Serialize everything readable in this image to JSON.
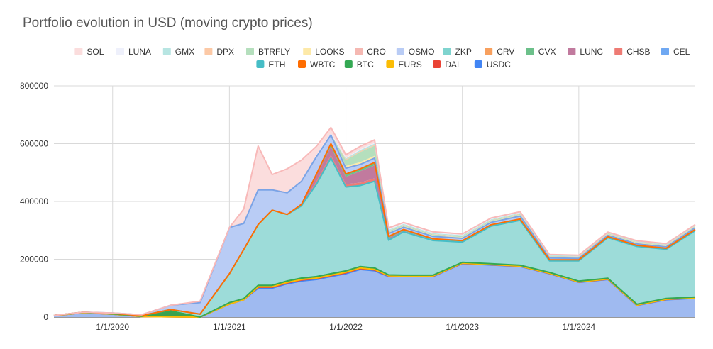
{
  "chart_data": {
    "type": "area",
    "stacked": true,
    "title": "Portfolio evolution in USD (moving crypto prices)",
    "xlabel": "",
    "ylabel": "",
    "ylim": [
      0,
      800000
    ],
    "y_ticks": [
      0,
      200000,
      400000,
      600000,
      800000
    ],
    "y_tick_labels": [
      "0",
      "200000",
      "400000",
      "600000",
      "800000"
    ],
    "x_ticks": [
      "2020-01-01",
      "2021-01-01",
      "2022-01-01",
      "2023-01-01",
      "2024-01-01"
    ],
    "x_tick_labels": [
      "1/1/2020",
      "1/1/2021",
      "1/1/2022",
      "1/1/2023",
      "1/1/2024"
    ],
    "x_range": [
      "2019-07-01",
      "2024-12-31"
    ],
    "grid": true,
    "legend_position": "top",
    "x": [
      "2019-07-01",
      "2019-10-01",
      "2020-01-01",
      "2020-04-01",
      "2020-07-01",
      "2020-10-01",
      "2021-01-01",
      "2021-02-15",
      "2021-04-01",
      "2021-05-15",
      "2021-07-01",
      "2021-08-15",
      "2021-10-01",
      "2021-11-15",
      "2022-01-01",
      "2022-02-15",
      "2022-04-01",
      "2022-05-15",
      "2022-07-01",
      "2022-10-01",
      "2023-01-01",
      "2023-04-01",
      "2023-07-01",
      "2023-10-01",
      "2024-01-01",
      "2024-04-01",
      "2024-07-01",
      "2024-10-01",
      "2024-12-31"
    ],
    "series": [
      {
        "name": "USDC",
        "color": "#9fbaf0",
        "values": [
          5000,
          15000,
          10000,
          2000,
          1000,
          0,
          45000,
          60000,
          100000,
          100000,
          115000,
          125000,
          130000,
          140000,
          150000,
          165000,
          160000,
          140000,
          140000,
          140000,
          185000,
          180000,
          175000,
          150000,
          120000,
          130000,
          40000,
          60000,
          65000
        ]
      },
      {
        "name": "DAI",
        "color": "#d64a3c",
        "values": [
          0,
          0,
          0,
          0,
          0,
          0,
          0,
          0,
          3000,
          3000,
          3000,
          3000,
          3000,
          3000,
          3000,
          3000,
          3000,
          2000,
          1000,
          1000,
          1000,
          1000,
          1000,
          1000,
          1000,
          1000,
          1000,
          1000,
          1000
        ]
      },
      {
        "name": "EURS",
        "color": "#f4b400",
        "values": [
          0,
          0,
          0,
          0,
          0,
          0,
          0,
          0,
          2000,
          2000,
          2000,
          2000,
          2000,
          2000,
          2000,
          2000,
          2000,
          1000,
          1000,
          1000,
          500,
          500,
          500,
          500,
          500,
          500,
          500,
          500,
          500
        ]
      },
      {
        "name": "BTC",
        "color": "#3aa14e",
        "values": [
          1000,
          1000,
          1000,
          1000,
          20000,
          0,
          5000,
          4000,
          5000,
          5000,
          5000,
          5000,
          5000,
          5000,
          5000,
          5000,
          5000,
          3000,
          3000,
          3000,
          3000,
          3000,
          3000,
          3000,
          3000,
          3000,
          3000,
          3000,
          3000
        ]
      },
      {
        "name": "WBTC",
        "color": "#ff7f0e",
        "values": [
          0,
          0,
          0,
          0,
          0,
          0,
          0,
          0,
          0,
          0,
          0,
          0,
          0,
          0,
          0,
          0,
          0,
          0,
          0,
          0,
          0,
          0,
          0,
          0,
          0,
          0,
          0,
          0,
          0
        ]
      },
      {
        "name": "ETH",
        "color": "#9ddcd9",
        "values": [
          0,
          1000,
          2000,
          2000,
          5000,
          10000,
          100000,
          170000,
          210000,
          260000,
          230000,
          250000,
          320000,
          400000,
          290000,
          280000,
          300000,
          120000,
          150000,
          120000,
          70000,
          130000,
          155000,
          40000,
          70000,
          140000,
          200000,
          170000,
          230000
        ]
      },
      {
        "name": "CEL",
        "color": "#6fa8f2",
        "values": [
          0,
          0,
          0,
          0,
          0,
          0,
          0,
          0,
          0,
          0,
          0,
          0,
          0,
          0,
          0,
          0,
          0,
          0,
          0,
          0,
          0,
          0,
          0,
          0,
          0,
          0,
          0,
          0,
          0
        ]
      },
      {
        "name": "CHSB",
        "color": "#ee7b74",
        "values": [
          0,
          0,
          0,
          0,
          0,
          0,
          0,
          0,
          0,
          0,
          0,
          0,
          10000,
          10000,
          10000,
          10000,
          10000,
          3000,
          2000,
          2000,
          1000,
          1000,
          1000,
          1000,
          500,
          500,
          500,
          500,
          500
        ]
      },
      {
        "name": "LUNC",
        "color": "#c17a9e",
        "values": [
          0,
          0,
          0,
          0,
          0,
          0,
          0,
          0,
          0,
          0,
          0,
          5000,
          20000,
          30000,
          25000,
          40000,
          45000,
          5000,
          2000,
          1000,
          1000,
          1000,
          1000,
          1000,
          1000,
          1000,
          1000,
          1000,
          1000
        ]
      },
      {
        "name": "CVX",
        "color": "#6cc08a",
        "values": [
          0,
          0,
          0,
          0,
          0,
          0,
          0,
          0,
          0,
          0,
          0,
          0,
          5000,
          10000,
          10000,
          8000,
          10000,
          5000,
          4000,
          3000,
          3000,
          3000,
          3000,
          2000,
          2000,
          2000,
          2000,
          2000,
          2000
        ]
      },
      {
        "name": "CRV",
        "color": "#f8a05e",
        "values": [
          0,
          0,
          0,
          0,
          0,
          0,
          0,
          0,
          0,
          0,
          0,
          0,
          0,
          0,
          0,
          0,
          0,
          0,
          0,
          0,
          0,
          0,
          0,
          0,
          0,
          0,
          0,
          0,
          0
        ]
      },
      {
        "name": "ZKP",
        "color": "#7fd4cf",
        "values": [
          0,
          0,
          0,
          0,
          0,
          0,
          0,
          0,
          0,
          0,
          0,
          0,
          0,
          0,
          0,
          0,
          0,
          0,
          0,
          0,
          0,
          0,
          0,
          0,
          0,
          0,
          0,
          0,
          0
        ]
      },
      {
        "name": "OSMO",
        "color": "#b9ccf5",
        "values": [
          0,
          0,
          1000,
          3000,
          15000,
          40000,
          160000,
          90000,
          120000,
          70000,
          75000,
          80000,
          60000,
          30000,
          20000,
          15000,
          15000,
          10000,
          8000,
          8000,
          8000,
          8000,
          10000,
          6000,
          5000,
          5000,
          5000,
          5000,
          6000
        ]
      },
      {
        "name": "CRO",
        "color": "#f5b8b2",
        "values": [
          0,
          0,
          0,
          0,
          0,
          0,
          0,
          0,
          2000,
          3000,
          3000,
          3000,
          3000,
          3000,
          3000,
          3000,
          3000,
          2000,
          2000,
          2000,
          2000,
          2000,
          2000,
          2000,
          2000,
          2000,
          2000,
          2000,
          2000
        ]
      },
      {
        "name": "LOOKS",
        "color": "#fde9a8",
        "values": [
          0,
          0,
          0,
          0,
          0,
          0,
          0,
          0,
          0,
          0,
          0,
          0,
          0,
          0,
          5000,
          5000,
          5000,
          2000,
          2000,
          2000,
          2000,
          2000,
          2000,
          2000,
          2000,
          2000,
          2000,
          2000,
          2000
        ]
      },
      {
        "name": "BTRFLY",
        "color": "#b5dfbd",
        "values": [
          0,
          0,
          0,
          0,
          0,
          0,
          0,
          0,
          0,
          0,
          0,
          0,
          0,
          0,
          20000,
          35000,
          35000,
          5000,
          3000,
          3000,
          3000,
          3000,
          3000,
          2000,
          2000,
          2000,
          2000,
          2000,
          2000
        ]
      },
      {
        "name": "DPX",
        "color": "#fcc9a6",
        "values": [
          0,
          0,
          0,
          0,
          0,
          0,
          0,
          0,
          0,
          0,
          0,
          0,
          0,
          0,
          3000,
          3000,
          3000,
          1000,
          1000,
          1000,
          1000,
          1000,
          1000,
          1000,
          1000,
          1000,
          1000,
          1000,
          1000
        ]
      },
      {
        "name": "GMX",
        "color": "#b7e5e2",
        "values": [
          0,
          0,
          0,
          0,
          0,
          0,
          0,
          0,
          0,
          0,
          0,
          0,
          0,
          0,
          3000,
          4000,
          4000,
          3000,
          3000,
          3000,
          3000,
          3000,
          3000,
          3000,
          2000,
          2000,
          2000,
          2000,
          2000
        ]
      },
      {
        "name": "LUNA",
        "color": "#eef0fb",
        "values": [
          0,
          0,
          0,
          0,
          0,
          0,
          0,
          0,
          0,
          0,
          0,
          0,
          3000,
          3000,
          3000,
          3000,
          3000,
          2000,
          2000,
          2000,
          2000,
          2000,
          2000,
          1000,
          1000,
          1000,
          1000,
          1000,
          1000
        ]
      },
      {
        "name": "SOL",
        "color": "#fbdddd",
        "values": [
          0,
          0,
          0,
          0,
          0,
          5000,
          0,
          50000,
          150000,
          50000,
          80000,
          70000,
          30000,
          20000,
          10000,
          10000,
          10000,
          5000,
          3000,
          3000,
          2000,
          2000,
          2000,
          1000,
          1000,
          1000,
          1000,
          1000,
          1000
        ]
      }
    ],
    "legend": [
      [
        "SOL",
        "#fbdddd"
      ],
      [
        "LUNA",
        "#eef0fb"
      ],
      [
        "GMX",
        "#b7e5e2"
      ],
      [
        "DPX",
        "#fcc9a6"
      ],
      [
        "BTRFLY",
        "#b5dfbd"
      ],
      [
        "LOOKS",
        "#fde9a8"
      ],
      [
        "CRO",
        "#f5b8b2"
      ],
      [
        "OSMO",
        "#b9ccf5"
      ],
      [
        "ZKP",
        "#7fd4cf"
      ],
      [
        "CRV",
        "#f8a05e"
      ],
      [
        "CVX",
        "#6cc08a"
      ],
      [
        "LUNC",
        "#c17a9e"
      ],
      [
        "CHSB",
        "#ee7b74"
      ],
      [
        "CEL",
        "#6fa8f2"
      ],
      [
        "ETH",
        "#46bdc6"
      ],
      [
        "WBTC",
        "#ff6d01"
      ],
      [
        "BTC",
        "#34a853"
      ],
      [
        "EURS",
        "#fbbc04"
      ],
      [
        "DAI",
        "#ea4335"
      ],
      [
        "USDC",
        "#4285f4"
      ]
    ],
    "line_colors": {
      "USDC": "#4285f4",
      "DAI": "#ea4335",
      "EURS": "#fbbc04",
      "BTC": "#34a853",
      "ETH": "#46bdc6",
      "OSMO": "#7aa3e6",
      "CRV": "#ff6d01",
      "SOL": "#f8b9b9"
    }
  }
}
